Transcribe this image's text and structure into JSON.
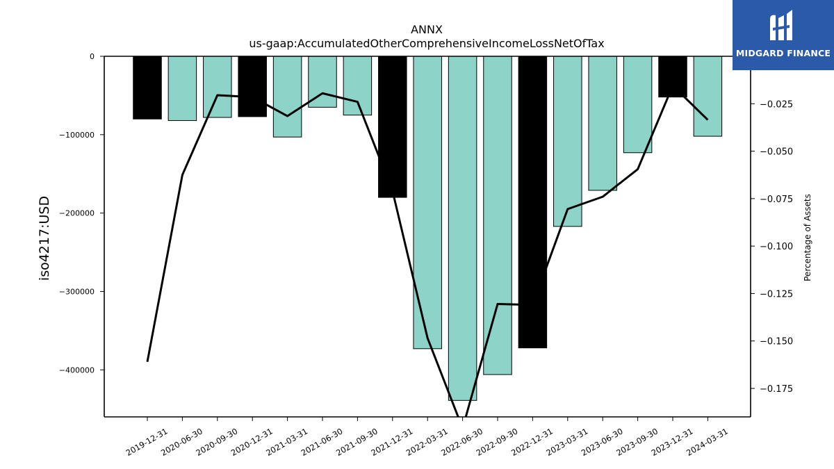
{
  "chart_data": {
    "type": "bar",
    "title": "ANNX",
    "subtitle": "us-gaap:AccumulatedOtherComprehensiveIncomeLossNetOfTax",
    "ylabel": "iso4217:USD",
    "y2label": "Percentage of Assets",
    "categories": [
      "2019-12-31",
      "2020-06-30",
      "2020-09-30",
      "2020-12-31",
      "2021-03-31",
      "2021-06-30",
      "2021-09-30",
      "2021-12-31",
      "2022-03-31",
      "2022-06-30",
      "2022-09-30",
      "2022-12-31",
      "2023-03-31",
      "2023-06-30",
      "2023-09-30",
      "2023-12-31",
      "2024-03-31"
    ],
    "series": [
      {
        "type": "bar",
        "values": [
          -80000,
          -82000,
          -78000,
          -77000,
          -103000,
          -65000,
          -75000,
          -180000,
          -373000,
          -439000,
          -406000,
          -372000,
          -217000,
          -171000,
          -123000,
          -52000,
          -102000
        ],
        "bar_colors": [
          "#000000",
          "#8dd3c7",
          "#8dd3c7",
          "#000000",
          "#8dd3c7",
          "#8dd3c7",
          "#8dd3c7",
          "#000000",
          "#8dd3c7",
          "#8dd3c7",
          "#8dd3c7",
          "#000000",
          "#8dd3c7",
          "#8dd3c7",
          "#8dd3c7",
          "#000000",
          "#8dd3c7"
        ]
      },
      {
        "type": "line",
        "axis": "right",
        "color": "#000000",
        "values": [
          -0.161,
          -0.0625,
          -0.0205,
          -0.0215,
          -0.0315,
          -0.0195,
          -0.024,
          -0.071,
          -0.1485,
          -0.196,
          -0.1305,
          -0.131,
          -0.0805,
          -0.074,
          -0.0595,
          -0.0155,
          -0.0335
        ]
      }
    ],
    "ylim": [
      -460000,
      0
    ],
    "y_ticks": [
      0,
      -100000,
      -200000,
      -300000,
      -400000
    ],
    "y_tick_labels": [
      "0",
      "−100000",
      "−200000",
      "−300000",
      "−400000"
    ],
    "y2lim": [
      -0.19,
      0
    ],
    "y2_ticks": [
      -0.025,
      -0.05,
      -0.075,
      -0.1,
      -0.125,
      -0.15,
      -0.175
    ],
    "y2_tick_labels": [
      "−0.025",
      "−0.050",
      "−0.075",
      "−0.100",
      "−0.125",
      "−0.150",
      "−0.175"
    ],
    "grid": false,
    "legend": "none"
  },
  "logo": {
    "text": "MIDGARD FINANCE",
    "bg_color": "#2b5aa8"
  }
}
